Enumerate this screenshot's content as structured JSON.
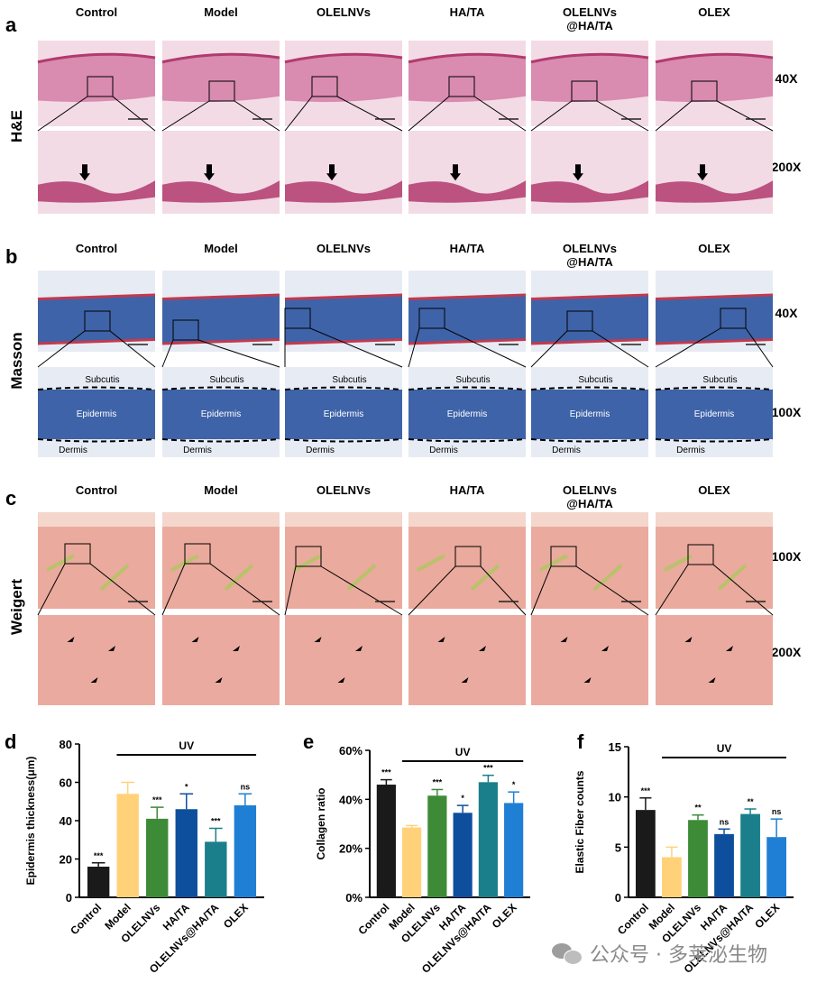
{
  "groups": [
    "Control",
    "Model",
    "OLELNVs",
    "HA/TA",
    "OLELNVs\n@HA/TA",
    "OLEX"
  ],
  "panels": {
    "a": {
      "letter": "a",
      "stain": "H&E",
      "mag_top": "40X",
      "mag_bottom": "200X"
    },
    "b": {
      "letter": "b",
      "stain": "Masson",
      "mag_top": "40X",
      "mag_bottom": "100X",
      "tissue_labels": {
        "subcutis": "Subcutis",
        "epidermis": "Epidermis",
        "dermis": "Dermis"
      }
    },
    "c": {
      "letter": "c",
      "stain": "Weigert",
      "mag_top": "100X",
      "mag_bottom": "200X"
    }
  },
  "colors": {
    "he_bg": "#f3dbe5",
    "he_tissue": "#d98bb0",
    "he_dark": "#b23a6e",
    "masson_bg": "#e7ecf4",
    "masson_tissue": "#3f63a8",
    "masson_red": "#c23a4e",
    "weigert_bg": "#f4d6cc",
    "weigert_tissue": "#e79b8e",
    "weigert_fiber": "#b9c26a"
  },
  "chart_data": [
    {
      "panel": "d",
      "type": "bar",
      "categories": [
        "Control",
        "Model",
        "OLELNVs",
        "HA/TA",
        "OLELNVs@HA/TA",
        "OLEX"
      ],
      "values": [
        16,
        54,
        41,
        46,
        29,
        48
      ],
      "errors": [
        2,
        6,
        6,
        8,
        7,
        6
      ],
      "significance": [
        "***",
        "",
        "***",
        "*",
        "***",
        "ns"
      ],
      "colors": [
        "#1a1a1a",
        "#ffd27a",
        "#3d8b37",
        "#0d4f9c",
        "#1a7f8a",
        "#1f7fd4"
      ],
      "ylabel": "Epidermis thickness(μm)",
      "ylim": [
        0,
        80
      ],
      "yticks": [
        "0",
        "20",
        "40",
        "60",
        "80"
      ],
      "bracket_label": "UV"
    },
    {
      "panel": "e",
      "type": "bar",
      "categories": [
        "Control",
        "Model",
        "OLELNVs",
        "HA/TA",
        "OLELNVs@HA/TA",
        "OLEX"
      ],
      "values": [
        46,
        28.5,
        41.5,
        34.5,
        47,
        38.5
      ],
      "errors": [
        2,
        0.8,
        2.5,
        3,
        2.8,
        4.5
      ],
      "significance": [
        "***",
        "",
        "***",
        "*",
        "***",
        "*"
      ],
      "colors": [
        "#1a1a1a",
        "#ffd27a",
        "#3d8b37",
        "#0d4f9c",
        "#1a7f8a",
        "#1f7fd4"
      ],
      "ylabel": "Collagen ratio",
      "ylim": [
        0,
        60
      ],
      "yticks": [
        "0%",
        "20%",
        "40%",
        "60%"
      ],
      "bracket_label": "UV"
    },
    {
      "panel": "f",
      "type": "bar",
      "categories": [
        "Control",
        "Model",
        "OLELNVs",
        "HA/TA",
        "OLELNVs@HA/TA",
        "OLEX"
      ],
      "values": [
        8.7,
        4,
        7.7,
        6.3,
        8.3,
        6
      ],
      "errors": [
        1.2,
        1,
        0.5,
        0.5,
        0.5,
        1.8
      ],
      "significance": [
        "***",
        "",
        "**",
        "ns",
        "**",
        "ns"
      ],
      "colors": [
        "#1a1a1a",
        "#ffd27a",
        "#3d8b37",
        "#0d4f9c",
        "#1a7f8a",
        "#1f7fd4"
      ],
      "ylabel": "Elastic Fiber counts",
      "ylim": [
        0,
        15
      ],
      "yticks": [
        "0",
        "5",
        "10",
        "15"
      ],
      "bracket_label": "UV"
    }
  ],
  "watermark": "公众号 · 多莱泌生物"
}
